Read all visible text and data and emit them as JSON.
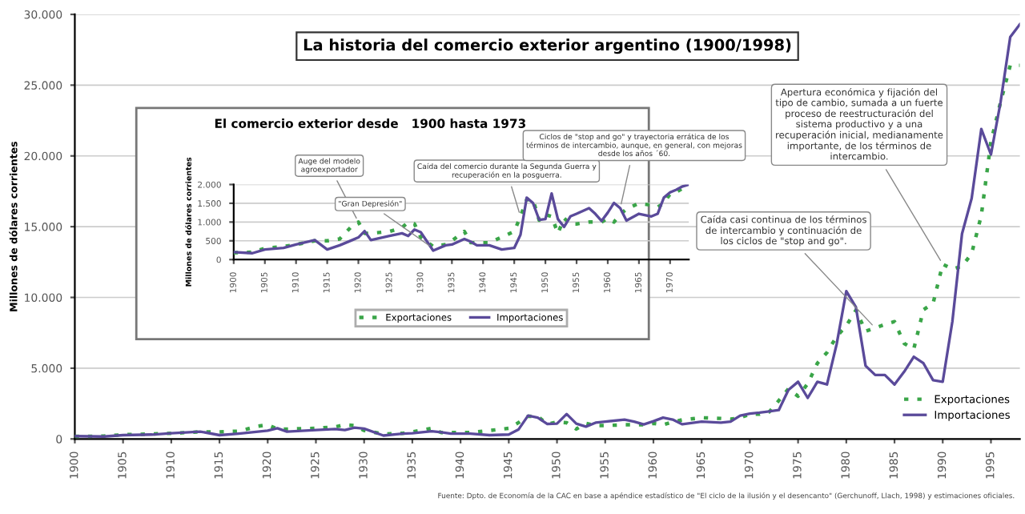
{
  "chart_data": [
    {
      "type": "line",
      "title": "La historia del comercio exterior argentino (1900/1998)",
      "ylabel": "Millones de dólares corrientes",
      "x": [
        1900,
        1903,
        1905,
        1908,
        1910,
        1913,
        1915,
        1917,
        1919,
        1920,
        1921,
        1922,
        1925,
        1927,
        1928,
        1929,
        1930,
        1932,
        1934,
        1935,
        1937,
        1938,
        1939,
        1941,
        1943,
        1945,
        1946,
        1947,
        1948,
        1949,
        1950,
        1951,
        1952,
        1953,
        1954,
        1955,
        1957,
        1958,
        1959,
        1960,
        1961,
        1962,
        1963,
        1965,
        1967,
        1968,
        1969,
        1970,
        1971,
        1972,
        1973,
        1974,
        1975,
        1976,
        1977,
        1978,
        1979,
        1980,
        1981,
        1982,
        1983,
        1984,
        1985,
        1986,
        1987,
        1988,
        1989,
        1990,
        1991,
        1992,
        1993,
        1994,
        1995,
        1996,
        1997,
        1998
      ],
      "series": [
        {
          "name": "Exportaciones",
          "color": "#3aa548",
          "line_style": "dotted",
          "values": [
            180,
            200,
            300,
            350,
            400,
            500,
            500,
            550,
            900,
            1000,
            700,
            700,
            750,
            850,
            1000,
            950,
            600,
            350,
            400,
            500,
            750,
            450,
            450,
            450,
            600,
            750,
            1150,
            1600,
            1600,
            1050,
            1200,
            1150,
            700,
            1100,
            950,
            950,
            1000,
            1000,
            1000,
            1100,
            1000,
            1200,
            1350,
            1500,
            1450,
            1400,
            1500,
            1750,
            1750,
            1900,
            2710,
            3540,
            3020,
            3900,
            5350,
            6110,
            7240,
            8000,
            9100,
            7610,
            7840,
            8100,
            8290,
            6750,
            6360,
            9130,
            9580,
            12350,
            12000,
            12200,
            13100,
            15800,
            21000,
            23800,
            26400,
            26400
          ]
        },
        {
          "name": "Importaciones",
          "color": "#5a4a9a",
          "line_style": "solid",
          "values": [
            200,
            170,
            270,
            310,
            400,
            520,
            270,
            380,
            520,
            590,
            760,
            520,
            630,
            700,
            630,
            800,
            730,
            240,
            380,
            400,
            550,
            480,
            380,
            380,
            270,
            310,
            660,
            1650,
            1510,
            1060,
            1080,
            1760,
            1080,
            870,
            1150,
            1220,
            1370,
            1220,
            1030,
            1250,
            1510,
            1370,
            1040,
            1220,
            1150,
            1220,
            1650,
            1790,
            1860,
            1950,
            2040,
            3470,
            4040,
            2900,
            4040,
            3850,
            6700,
            10440,
            9310,
            5170,
            4520,
            4520,
            3850,
            4750,
            5810,
            5350,
            4150,
            4040,
            8300,
            14500,
            17000,
            21900,
            20100,
            23800,
            28400,
            29300
          ]
        }
      ],
      "xlim": [
        1900,
        1998
      ],
      "xticks": [
        1900,
        1905,
        1910,
        1915,
        1920,
        1925,
        1930,
        1935,
        1940,
        1945,
        1950,
        1955,
        1960,
        1965,
        1970,
        1975,
        1980,
        1985,
        1990,
        1995
      ],
      "ylim": [
        0,
        30000
      ],
      "yticks": [
        {
          "value": 0,
          "label": "0"
        },
        {
          "value": 5000,
          "label": "5.000"
        },
        {
          "value": 10000,
          "label": "10.000"
        },
        {
          "value": 15000,
          "label": "15.000"
        },
        {
          "value": 20000,
          "label": "20.000"
        },
        {
          "value": 25000,
          "label": "25.000"
        },
        {
          "value": 30000,
          "label": "30.000"
        }
      ],
      "grid": "y",
      "legend": "bottom right",
      "annotations": [
        {
          "text": "Apertura económica y fijación del tipo de cambio, sumada a un fuerte proceso de reestructuración del sistema productivo y a una recuperación inicial, medianamente importante, de los términos de intercambio.",
          "x": 1990,
          "y": 12350
        },
        {
          "text": "Caída casi continua de los términos de intercambio y continuación de los ciclos de \"stop and go\".",
          "x": 1983,
          "y": 7840
        },
        "Fuente: Dpto. de Economía de la CAC en base a apéndice estadístico de \"El ciclo de la ilusión y el desencanto\" (Gerchunoff, Llach, 1998) y estimaciones oficiales."
      ]
    },
    {
      "type": "line",
      "title": "El comercio exterior desde   1900 hasta 1973",
      "ylabel": "Millones de dólares corrientes",
      "x": [
        1900,
        1903,
        1905,
        1908,
        1910,
        1913,
        1915,
        1917,
        1919,
        1920,
        1921,
        1922,
        1925,
        1927,
        1928,
        1929,
        1930,
        1932,
        1934,
        1935,
        1937,
        1938,
        1939,
        1941,
        1943,
        1945,
        1946,
        1947,
        1948,
        1949,
        1950,
        1951,
        1952,
        1953,
        1954,
        1955,
        1957,
        1958,
        1959,
        1960,
        1961,
        1962,
        1963,
        1965,
        1967,
        1968,
        1969,
        1970,
        1971,
        1972,
        1973
      ],
      "series": [
        {
          "name": "Exportaciones",
          "color": "#3aa548",
          "line_style": "dotted",
          "values": [
            180,
            200,
            300,
            350,
            400,
            500,
            500,
            550,
            900,
            1000,
            700,
            700,
            750,
            850,
            1000,
            950,
            600,
            350,
            400,
            500,
            750,
            450,
            450,
            450,
            600,
            750,
            1150,
            1600,
            1600,
            1050,
            1200,
            1150,
            700,
            1100,
            950,
            950,
            1000,
            1000,
            1000,
            1100,
            1000,
            1200,
            1350,
            1500,
            1450,
            1400,
            1500,
            1750,
            1800,
            1900,
            1950
          ]
        },
        {
          "name": "Importaciones",
          "color": "#5a4a9a",
          "line_style": "solid",
          "values": [
            200,
            170,
            270,
            310,
            400,
            520,
            270,
            380,
            520,
            590,
            760,
            520,
            630,
            700,
            630,
            800,
            730,
            240,
            380,
            400,
            550,
            480,
            380,
            380,
            270,
            310,
            660,
            1650,
            1510,
            1060,
            1080,
            1760,
            1080,
            870,
            1150,
            1220,
            1370,
            1220,
            1030,
            1250,
            1510,
            1370,
            1040,
            1220,
            1150,
            1220,
            1650,
            1790,
            1860,
            1950,
            2000
          ]
        }
      ],
      "xlim": [
        1900,
        1973
      ],
      "xticks": [
        1900,
        1905,
        1910,
        1915,
        1920,
        1925,
        1930,
        1935,
        1940,
        1945,
        1950,
        1955,
        1960,
        1965,
        1970
      ],
      "ylim": [
        0,
        2000
      ],
      "yticks": [
        {
          "value": 0,
          "label": "0"
        },
        {
          "value": 500,
          "label": "500"
        },
        {
          "value": 1000,
          "label": "1.000"
        },
        {
          "value": 1500,
          "label": "1.500"
        },
        {
          "value": 2000,
          "label": "2.000"
        }
      ],
      "grid": "y",
      "legend": "bottom",
      "annotations": [
        {
          "text": "Auge del modelo agroexportador",
          "x": 1920,
          "y": 1000
        },
        {
          "text": "\"Gran Depresión\"",
          "x": 1932,
          "y": 300
        },
        {
          "text": "Caída del comercio durante la Segunda Guerra y recuperación en la posguerra.",
          "x": 1946,
          "y": 1150
        },
        {
          "text": "Ciclos de \"stop and go\" y trayectoria errática de los términos de intercambio, aunque, en general, con mejoras desde los años ´60.",
          "x": 1962,
          "y": 1370
        }
      ]
    }
  ]
}
